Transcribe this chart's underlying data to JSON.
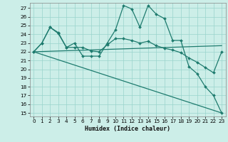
{
  "xlabel": "Humidex (Indice chaleur)",
  "bg_color": "#cceee8",
  "line_color": "#1e7b6e",
  "grid_color": "#99d4cc",
  "xlim": [
    -0.5,
    23.5
  ],
  "ylim": [
    14.6,
    27.6
  ],
  "yticks": [
    15,
    16,
    17,
    18,
    19,
    20,
    21,
    22,
    23,
    24,
    25,
    26,
    27
  ],
  "xticks": [
    0,
    1,
    2,
    3,
    4,
    5,
    6,
    7,
    8,
    9,
    10,
    11,
    12,
    13,
    14,
    15,
    16,
    17,
    18,
    19,
    20,
    21,
    22,
    23
  ],
  "curve1_x": [
    0,
    1,
    2,
    3,
    4,
    5,
    6,
    7,
    8,
    9,
    10,
    11,
    12,
    13,
    14,
    15,
    16,
    17,
    18,
    19,
    20,
    21,
    22,
    23
  ],
  "curve1_y": [
    22.0,
    23.0,
    24.8,
    24.2,
    22.5,
    23.0,
    21.5,
    21.5,
    21.5,
    23.0,
    24.5,
    27.3,
    26.9,
    24.8,
    27.3,
    26.3,
    25.8,
    23.3,
    23.3,
    20.3,
    19.5,
    18.0,
    17.0,
    15.0
  ],
  "curve2_x": [
    0,
    1,
    2,
    3,
    4,
    5,
    6,
    7,
    8,
    9,
    10,
    11,
    12,
    13,
    14,
    15,
    16,
    17,
    18,
    19,
    20,
    21,
    22,
    23
  ],
  "curve2_y": [
    22.0,
    23.0,
    24.8,
    24.1,
    22.5,
    22.5,
    22.5,
    22.1,
    22.0,
    22.8,
    23.5,
    23.5,
    23.3,
    23.0,
    23.2,
    22.7,
    22.4,
    22.2,
    21.9,
    21.3,
    20.8,
    20.2,
    19.6,
    22.0
  ],
  "line3_x": [
    0,
    23
  ],
  "line3_y": [
    22.0,
    22.7
  ],
  "line4_x": [
    0,
    23
  ],
  "line4_y": [
    22.0,
    15.0
  ]
}
